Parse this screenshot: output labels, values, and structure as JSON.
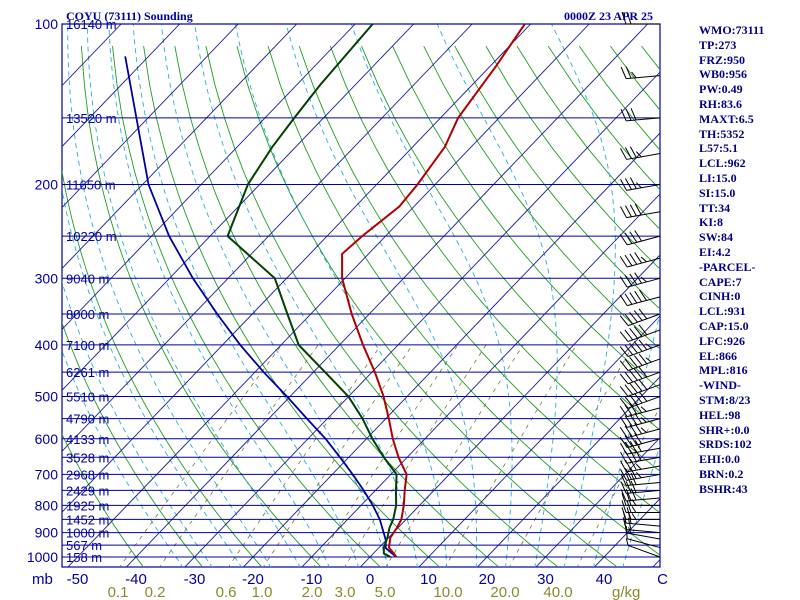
{
  "header": {
    "title_left": "COYU (73111) Sounding",
    "title_right": "0000Z 23 APR 25"
  },
  "indices": [
    "WMO:73111",
    "TP:273",
    "FRZ:950",
    "WB0:956",
    "PW:0.49",
    "RH:83.6",
    "MAXT:6.5",
    "TH:5352",
    "L57:5.1",
    "LCL:962",
    "LI:15.0",
    "SI:15.0",
    "TT:34",
    "KI:8",
    "SW:84",
    "EI:4.2",
    "-PARCEL-",
    "CAPE:7",
    "CINH:0",
    "LCL:931",
    "CAP:15.0",
    "LFC:926",
    "EL:866",
    "MPL:816",
    "-WIND-",
    "STM:8/23",
    "HEL:98",
    "SHR+:0.0",
    "SRDS:102",
    "EHI:0.0",
    "BRN:0.2",
    "BSHR:43"
  ],
  "colors": {
    "isobar": "#0000a0",
    "isotherm": "#1a1a9a",
    "dry_adiabat": "#1e9e1e",
    "moist_adiabat": "#26b0d8",
    "mixing_ratio": "#7a7a2a",
    "temperature": "#b00000",
    "dewpoint": "#004000",
    "parcel": "#0000a0",
    "wind_barb": "#000000",
    "axis_text": "#0000a0",
    "mixing_text": "#8a8a2a"
  },
  "chart_data": {
    "type": "skew-t",
    "x_unit": "mb",
    "mixing_unit": "g/kg",
    "pressure_ticks": [
      {
        "p": 100,
        "label": "100"
      },
      {
        "p": 200,
        "label": "200"
      },
      {
        "p": 300,
        "label": "300"
      },
      {
        "p": 400,
        "label": "400"
      },
      {
        "p": 500,
        "label": "500"
      },
      {
        "p": 600,
        "label": "600"
      },
      {
        "p": 700,
        "label": "700"
      },
      {
        "p": 800,
        "label": "800"
      },
      {
        "p": 900,
        "label": "900"
      },
      {
        "p": 1000,
        "label": "1000"
      }
    ],
    "height_labels": [
      {
        "p": 100,
        "label": "16140 m"
      },
      {
        "p": 150,
        "label": "13520 m"
      },
      {
        "p": 200,
        "label": "11650 m"
      },
      {
        "p": 250,
        "label": "10220 m"
      },
      {
        "p": 300,
        "label": "9040 m"
      },
      {
        "p": 350,
        "label": "8000 m"
      },
      {
        "p": 400,
        "label": "7100 m"
      },
      {
        "p": 450,
        "label": "6261 m"
      },
      {
        "p": 500,
        "label": "5510 m"
      },
      {
        "p": 550,
        "label": "4790 m"
      },
      {
        "p": 600,
        "label": "4133 m"
      },
      {
        "p": 650,
        "label": "3528 m"
      },
      {
        "p": 700,
        "label": "2968 m"
      },
      {
        "p": 750,
        "label": "2429 m"
      },
      {
        "p": 800,
        "label": "1925 m"
      },
      {
        "p": 850,
        "label": "1452 m"
      },
      {
        "p": 900,
        "label": "1000 m"
      },
      {
        "p": 950,
        "label": "567 m"
      },
      {
        "p": 1000,
        "label": "158 m"
      }
    ],
    "temperature_ticks": [
      {
        "t": -50,
        "label": "-50"
      },
      {
        "t": -40,
        "label": "-40"
      },
      {
        "t": -30,
        "label": "-30"
      },
      {
        "t": -20,
        "label": "-20"
      },
      {
        "t": -10,
        "label": "-10"
      },
      {
        "t": 0,
        "label": "0"
      },
      {
        "t": 10,
        "label": "10"
      },
      {
        "t": 20,
        "label": "20"
      },
      {
        "t": 30,
        "label": "30"
      },
      {
        "t": 40,
        "label": "40"
      },
      {
        "t": 50,
        "label": "C"
      }
    ],
    "mixing_ratio_labels": [
      "0.1",
      "0.2",
      "0.6",
      "1.0",
      "2.0",
      "3.0",
      "5.0",
      "10.0",
      "20.0",
      "40.0"
    ],
    "temperature": [
      {
        "p": 1000,
        "t": 4.5
      },
      {
        "p": 985,
        "t": 3.5
      },
      {
        "p": 960,
        "t": 1.7
      },
      {
        "p": 920,
        "t": 0.3
      },
      {
        "p": 880,
        "t": -0.2
      },
      {
        "p": 850,
        "t": -0.8
      },
      {
        "p": 800,
        "t": -2.7
      },
      {
        "p": 750,
        "t": -5.0
      },
      {
        "p": 700,
        "t": -7.3
      },
      {
        "p": 650,
        "t": -11.5
      },
      {
        "p": 600,
        "t": -15.5
      },
      {
        "p": 550,
        "t": -19.5
      },
      {
        "p": 500,
        "t": -24.0
      },
      {
        "p": 450,
        "t": -29.5
      },
      {
        "p": 400,
        "t": -36.0
      },
      {
        "p": 350,
        "t": -43.0
      },
      {
        "p": 300,
        "t": -50.5
      },
      {
        "p": 270,
        "t": -54.5
      },
      {
        "p": 250,
        "t": -54.0
      },
      {
        "p": 220,
        "t": -52.5
      },
      {
        "p": 200,
        "t": -53.0
      },
      {
        "p": 170,
        "t": -54.5
      },
      {
        "p": 150,
        "t": -57.0
      },
      {
        "p": 120,
        "t": -59.0
      },
      {
        "p": 100,
        "t": -61.0
      }
    ],
    "dewpoint": [
      {
        "p": 1000,
        "t": 3.5
      },
      {
        "p": 985,
        "t": 1.8
      },
      {
        "p": 960,
        "t": 0.8
      },
      {
        "p": 920,
        "t": -0.2
      },
      {
        "p": 880,
        "t": -1.5
      },
      {
        "p": 850,
        "t": -2.2
      },
      {
        "p": 800,
        "t": -4.0
      },
      {
        "p": 750,
        "t": -6.5
      },
      {
        "p": 700,
        "t": -9.0
      },
      {
        "p": 650,
        "t": -14.0
      },
      {
        "p": 600,
        "t": -19.0
      },
      {
        "p": 550,
        "t": -24.0
      },
      {
        "p": 500,
        "t": -30.0
      },
      {
        "p": 450,
        "t": -38.0
      },
      {
        "p": 400,
        "t": -47.0
      },
      {
        "p": 350,
        "t": -54.0
      },
      {
        "p": 300,
        "t": -62.0
      },
      {
        "p": 250,
        "t": -77.0
      },
      {
        "p": 200,
        "t": -82.0
      },
      {
        "p": 170,
        "t": -84.0
      },
      {
        "p": 150,
        "t": -85.0
      },
      {
        "p": 130,
        "t": -86.0
      },
      {
        "p": 100,
        "t": -87.0
      }
    ],
    "parcel": [
      {
        "p": 1000,
        "t": 4.5
      },
      {
        "p": 962,
        "t": 1.2
      },
      {
        "p": 931,
        "t": 0.0
      },
      {
        "p": 850,
        "t": -4.5
      },
      {
        "p": 800,
        "t": -8.0
      },
      {
        "p": 750,
        "t": -12.0
      },
      {
        "p": 700,
        "t": -16.5
      },
      {
        "p": 650,
        "t": -21.5
      },
      {
        "p": 600,
        "t": -27.0
      },
      {
        "p": 550,
        "t": -33.5
      },
      {
        "p": 500,
        "t": -40.5
      },
      {
        "p": 450,
        "t": -48.5
      },
      {
        "p": 400,
        "t": -57.0
      },
      {
        "p": 350,
        "t": -66.0
      },
      {
        "p": 300,
        "t": -76.0
      },
      {
        "p": 250,
        "t": -87.0
      },
      {
        "p": 200,
        "t": -99.0
      },
      {
        "p": 150,
        "t": -112.0
      },
      {
        "p": 115,
        "t": -124.0
      }
    ],
    "winds": [
      {
        "p": 1000,
        "dir": 290,
        "spd": 5
      },
      {
        "p": 960,
        "dir": 285,
        "spd": 10
      },
      {
        "p": 925,
        "dir": 280,
        "spd": 15
      },
      {
        "p": 900,
        "dir": 275,
        "spd": 20
      },
      {
        "p": 875,
        "dir": 275,
        "spd": 20
      },
      {
        "p": 850,
        "dir": 270,
        "spd": 25
      },
      {
        "p": 825,
        "dir": 270,
        "spd": 25
      },
      {
        "p": 800,
        "dir": 270,
        "spd": 25
      },
      {
        "p": 775,
        "dir": 265,
        "spd": 30
      },
      {
        "p": 750,
        "dir": 265,
        "spd": 30
      },
      {
        "p": 725,
        "dir": 265,
        "spd": 30
      },
      {
        "p": 700,
        "dir": 260,
        "spd": 35
      },
      {
        "p": 675,
        "dir": 260,
        "spd": 35
      },
      {
        "p": 650,
        "dir": 260,
        "spd": 40
      },
      {
        "p": 625,
        "dir": 260,
        "spd": 40
      },
      {
        "p": 600,
        "dir": 255,
        "spd": 40
      },
      {
        "p": 575,
        "dir": 255,
        "spd": 45
      },
      {
        "p": 550,
        "dir": 255,
        "spd": 45
      },
      {
        "p": 525,
        "dir": 255,
        "spd": 45
      },
      {
        "p": 500,
        "dir": 250,
        "spd": 50
      },
      {
        "p": 475,
        "dir": 250,
        "spd": 50
      },
      {
        "p": 450,
        "dir": 250,
        "spd": 50
      },
      {
        "p": 425,
        "dir": 250,
        "spd": 55
      },
      {
        "p": 400,
        "dir": 250,
        "spd": 55
      },
      {
        "p": 375,
        "dir": 250,
        "spd": 50
      },
      {
        "p": 350,
        "dir": 250,
        "spd": 50
      },
      {
        "p": 325,
        "dir": 255,
        "spd": 50
      },
      {
        "p": 300,
        "dir": 255,
        "spd": 45
      },
      {
        "p": 275,
        "dir": 255,
        "spd": 45
      },
      {
        "p": 250,
        "dir": 255,
        "spd": 40
      },
      {
        "p": 225,
        "dir": 260,
        "spd": 40
      },
      {
        "p": 200,
        "dir": 260,
        "spd": 35
      },
      {
        "p": 175,
        "dir": 260,
        "spd": 35
      },
      {
        "p": 150,
        "dir": 265,
        "spd": 30
      },
      {
        "p": 125,
        "dir": 265,
        "spd": 25
      },
      {
        "p": 100,
        "dir": 270,
        "spd": 20
      }
    ]
  }
}
